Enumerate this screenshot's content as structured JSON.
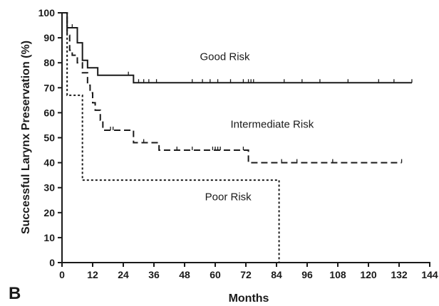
{
  "panel_letter": "B",
  "chart_data": {
    "type": "line",
    "style": "step (Kaplan-Meier)",
    "title": "",
    "xlabel": "Months",
    "ylabel": "Successful Larynx Preservation (%)",
    "xlim": [
      0,
      144
    ],
    "ylim": [
      0,
      100
    ],
    "x_ticks": [
      0,
      12,
      24,
      36,
      48,
      60,
      72,
      84,
      96,
      108,
      120,
      132,
      144
    ],
    "y_ticks": [
      0,
      10,
      20,
      30,
      40,
      50,
      60,
      70,
      80,
      90,
      100
    ],
    "grid": false,
    "legend": "none (curves labeled inline)",
    "series": [
      {
        "name": "Good Risk",
        "line_style": "solid",
        "steps": [
          [
            0,
            100
          ],
          [
            2,
            94
          ],
          [
            6,
            88
          ],
          [
            8,
            81
          ],
          [
            10,
            78
          ],
          [
            14,
            75
          ],
          [
            28,
            72
          ],
          [
            137,
            72
          ]
        ],
        "censored": [
          [
            4,
            94
          ],
          [
            26,
            75
          ],
          [
            30,
            72
          ],
          [
            32,
            72
          ],
          [
            34,
            72
          ],
          [
            37,
            72
          ],
          [
            51,
            72
          ],
          [
            55,
            72
          ],
          [
            58,
            72
          ],
          [
            61,
            72
          ],
          [
            66,
            72
          ],
          [
            71,
            72
          ],
          [
            73,
            72
          ],
          [
            74,
            72
          ],
          [
            75,
            72
          ],
          [
            87,
            72
          ],
          [
            94,
            72
          ],
          [
            101,
            72
          ],
          [
            112,
            72
          ],
          [
            124,
            72
          ],
          [
            130,
            72
          ],
          [
            137,
            72
          ]
        ]
      },
      {
        "name": "Intermediate Risk",
        "line_style": "dashed",
        "steps": [
          [
            0,
            100
          ],
          [
            2,
            91
          ],
          [
            3,
            85
          ],
          [
            4,
            83
          ],
          [
            6,
            80
          ],
          [
            8,
            76
          ],
          [
            10,
            71
          ],
          [
            11,
            68
          ],
          [
            12,
            64
          ],
          [
            13,
            61
          ],
          [
            15,
            57
          ],
          [
            16,
            53
          ],
          [
            28,
            48
          ],
          [
            38,
            45
          ],
          [
            73,
            40
          ],
          [
            133,
            40
          ]
        ],
        "censored": [
          [
            19,
            53
          ],
          [
            20,
            53
          ],
          [
            32,
            48
          ],
          [
            45,
            45
          ],
          [
            51,
            45
          ],
          [
            59,
            45
          ],
          [
            60,
            45
          ],
          [
            61,
            45
          ],
          [
            62,
            45
          ],
          [
            71,
            45
          ],
          [
            86,
            40
          ],
          [
            92,
            40
          ],
          [
            106,
            40
          ],
          [
            133,
            40
          ]
        ]
      },
      {
        "name": "Poor Risk",
        "line_style": "dotted",
        "steps": [
          [
            0,
            100
          ],
          [
            2,
            67
          ],
          [
            8,
            33
          ],
          [
            85,
            0
          ]
        ],
        "censored": []
      }
    ],
    "annotations": [
      {
        "text": "Good Risk",
        "x": 54,
        "y": 81
      },
      {
        "text": "Intermediate Risk",
        "x": 66,
        "y": 54
      },
      {
        "text": "Poor Risk",
        "x": 56,
        "y": 25
      }
    ]
  }
}
